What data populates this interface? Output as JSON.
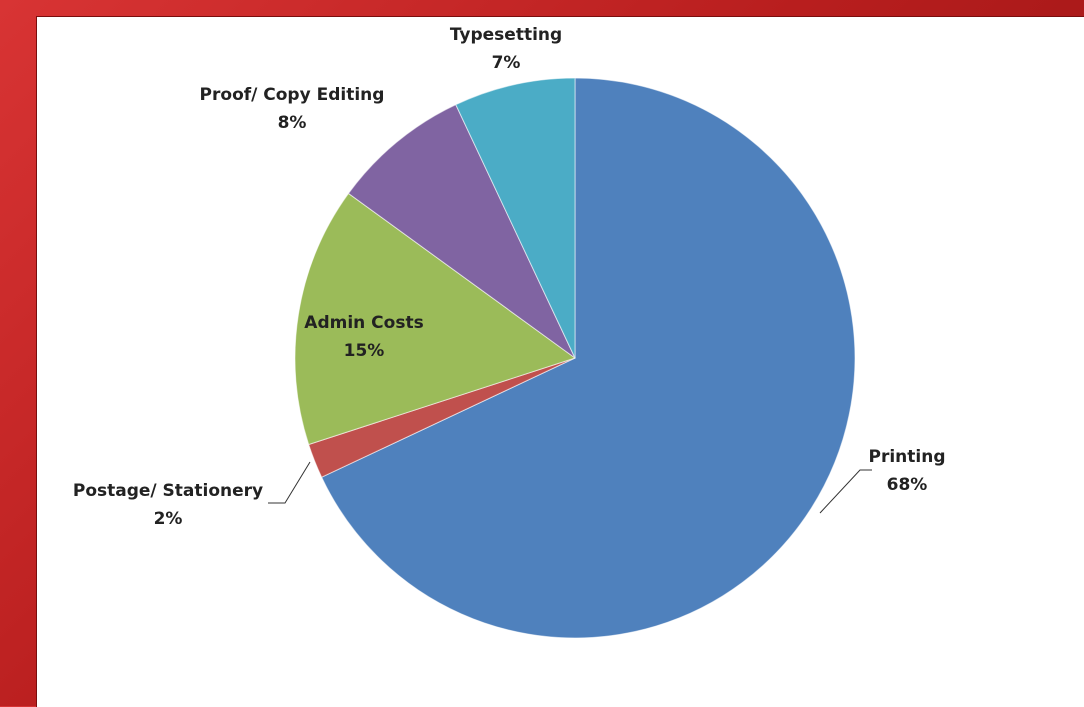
{
  "chart_data": {
    "type": "pie",
    "title": "",
    "slices": [
      {
        "label": "Printing",
        "percent_label": "68%",
        "value": 68,
        "color": "#4f81bd"
      },
      {
        "label": "Postage/ Stationery",
        "percent_label": "2%",
        "value": 2,
        "color": "#c0504d"
      },
      {
        "label": "Admin Costs",
        "percent_label": "15%",
        "value": 15,
        "color": "#9bbb59"
      },
      {
        "label": "Proof/ Copy Editing",
        "percent_label": "8%",
        "value": 8,
        "color": "#8064a2"
      },
      {
        "label": "Typesetting",
        "percent_label": "7%",
        "value": 7,
        "color": "#4bacc6"
      }
    ],
    "start": "12 o'clock",
    "direction": "clockwise"
  }
}
